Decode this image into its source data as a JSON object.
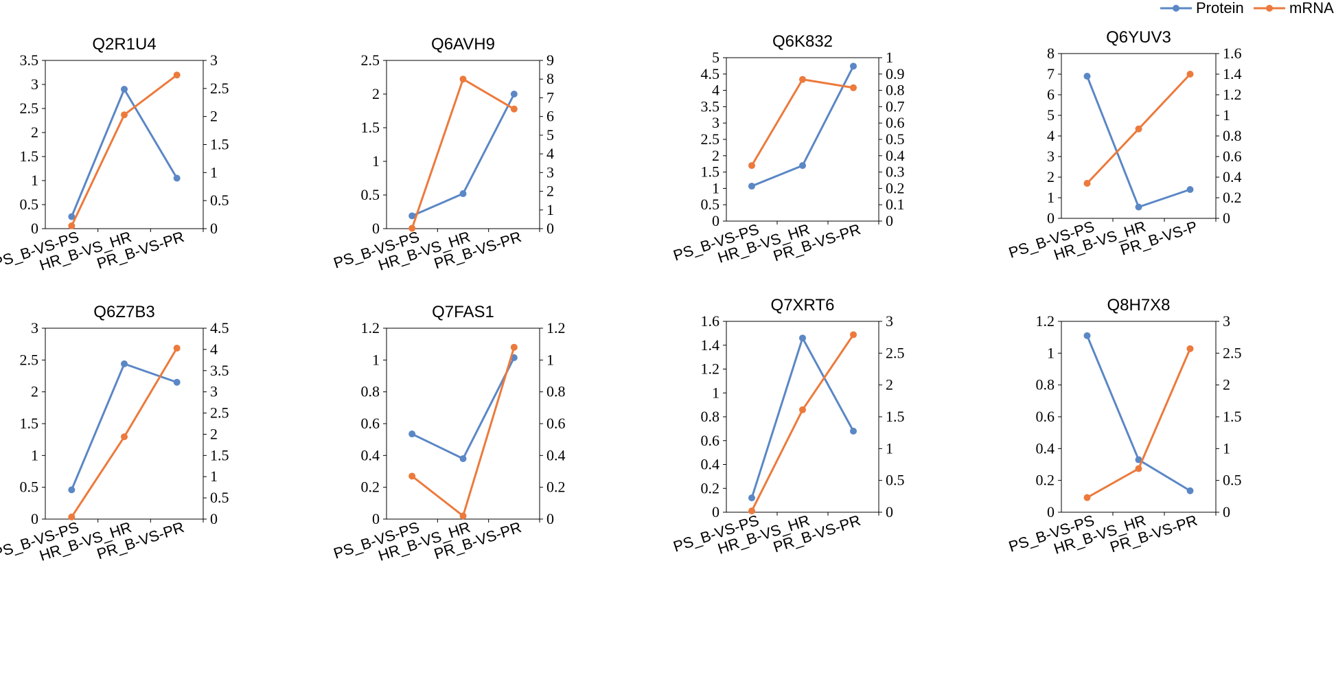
{
  "colors": {
    "protein": "#5b87c5",
    "mrna": "#ec7a3c"
  },
  "legend": [
    {
      "key": "protein",
      "label": "Protein"
    },
    {
      "key": "mrna",
      "label": "mRNA"
    }
  ],
  "chart_data": [
    {
      "type": "line",
      "title": "Q2R1U4",
      "categories": [
        "PS_B-VS-PS",
        "HR_B-VS_HR",
        "PR_B-VS-PR"
      ],
      "left_axis": {
        "series": "Protein",
        "ylim": [
          0,
          3.5
        ],
        "ticks": [
          "0",
          "0.5",
          "1",
          "1.5",
          "2",
          "2.5",
          "3",
          "3.5"
        ]
      },
      "right_axis": {
        "series": "mRNA",
        "ylim": [
          0,
          3
        ],
        "ticks": [
          "0",
          "0.5",
          "1",
          "1.5",
          "2",
          "2.5",
          "3"
        ]
      },
      "series": [
        {
          "name": "Protein",
          "axis": "left",
          "values": [
            0.25,
            2.9,
            1.05
          ]
        },
        {
          "name": "mRNA",
          "axis": "right",
          "values": [
            0.05,
            2.03,
            2.74
          ]
        }
      ]
    },
    {
      "type": "line",
      "title": "Q6AVH9",
      "categories": [
        "PS_B-VS-PS",
        "HR_B-VS_HR",
        "PR_B-VS-PR"
      ],
      "left_axis": {
        "series": "Protein",
        "ylim": [
          0,
          2.5
        ],
        "ticks": [
          "0",
          "0.5",
          "1",
          "1.5",
          "2",
          "2.5"
        ]
      },
      "right_axis": {
        "series": "mRNA",
        "ylim": [
          0,
          9
        ],
        "ticks": [
          "0",
          "1",
          "2",
          "3",
          "4",
          "5",
          "6",
          "7",
          "8",
          "9"
        ]
      },
      "series": [
        {
          "name": "Protein",
          "axis": "left",
          "values": [
            0.19,
            0.52,
            2.0
          ]
        },
        {
          "name": "mRNA",
          "axis": "right",
          "values": [
            0.02,
            8.0,
            6.4
          ]
        }
      ]
    },
    {
      "type": "line",
      "title": "Q6K832",
      "categories": [
        "PS_B-VS-PS",
        "HR_B-VS_HR",
        "PR_B-VS-PR"
      ],
      "left_axis": {
        "series": "Protein",
        "ylim": [
          0,
          5
        ],
        "ticks": [
          "0",
          "0.5",
          "1",
          "1.5",
          "2",
          "2.5",
          "3",
          "3.5",
          "4",
          "4.5",
          "5"
        ]
      },
      "right_axis": {
        "series": "mRNA",
        "ylim": [
          0,
          1
        ],
        "ticks": [
          "0",
          "0.1",
          "0.2",
          "0.3",
          "0.4",
          "0.5",
          "0.6",
          "0.7",
          "0.8",
          "0.9",
          "1"
        ]
      },
      "series": [
        {
          "name": "Protein",
          "axis": "left",
          "values": [
            1.07,
            1.7,
            4.74
          ]
        },
        {
          "name": "mRNA",
          "axis": "right",
          "values": [
            0.34,
            0.867,
            0.816
          ]
        }
      ]
    },
    {
      "type": "line",
      "title": "Q6YUV3",
      "categories": [
        "PS_B-VS-PS",
        "HR_B-VS_HR",
        "PR_B-VS-P"
      ],
      "left_axis": {
        "series": "Protein",
        "ylim": [
          0,
          8
        ],
        "ticks": [
          "0",
          "1",
          "2",
          "3",
          "4",
          "5",
          "6",
          "7",
          "8"
        ]
      },
      "right_axis": {
        "series": "mRNA",
        "ylim": [
          0,
          1.6
        ],
        "ticks": [
          "0",
          "0.2",
          "0.4",
          "0.6",
          "0.8",
          "1",
          "1.2",
          "1.4",
          "1.6"
        ]
      },
      "series": [
        {
          "name": "Protein",
          "axis": "left",
          "values": [
            6.9,
            0.55,
            1.4
          ]
        },
        {
          "name": "mRNA",
          "axis": "right",
          "values": [
            0.34,
            0.868,
            1.4
          ]
        }
      ]
    },
    {
      "type": "line",
      "title": "Q6Z7B3",
      "categories": [
        "PS_B-VS-PS",
        "HR_B-VS_HR",
        "PR_B-VS-PR"
      ],
      "left_axis": {
        "series": "Protein",
        "ylim": [
          0,
          3
        ],
        "ticks": [
          "0",
          "0.5",
          "1",
          "1.5",
          "2",
          "2.5",
          "3"
        ]
      },
      "right_axis": {
        "series": "mRNA",
        "ylim": [
          0,
          4.5
        ],
        "ticks": [
          "0",
          "0.5",
          "1",
          "1.5",
          "2",
          "2.5",
          "3",
          "3.5",
          "4",
          "4.5"
        ]
      },
      "series": [
        {
          "name": "Protein",
          "axis": "left",
          "values": [
            0.46,
            2.44,
            2.15
          ]
        },
        {
          "name": "mRNA",
          "axis": "right",
          "values": [
            0.05,
            1.94,
            4.03
          ]
        }
      ]
    },
    {
      "type": "line",
      "title": "Q7FAS1",
      "categories": [
        "PS_B-VS-PS",
        "HR_B-VS_HR",
        "PR_B-VS-PR"
      ],
      "left_axis": {
        "series": "Protein",
        "ylim": [
          0,
          1.2
        ],
        "ticks": [
          "0",
          "0.2",
          "0.4",
          "0.6",
          "0.8",
          "1",
          "1.2"
        ]
      },
      "right_axis": {
        "series": "mRNA",
        "ylim": [
          0,
          1.2
        ],
        "ticks": [
          "0",
          "0.2",
          "0.4",
          "0.6",
          "0.8",
          "1",
          "1.2"
        ]
      },
      "series": [
        {
          "name": "Protein",
          "axis": "left",
          "values": [
            0.535,
            0.38,
            1.015
          ]
        },
        {
          "name": "mRNA",
          "axis": "right",
          "values": [
            0.27,
            0.02,
            1.08
          ]
        }
      ]
    },
    {
      "type": "line",
      "title": "Q7XRT6",
      "categories": [
        "PS_B-VS-PS",
        "HR_B-VS_HR",
        "PR_B-VS-PR"
      ],
      "left_axis": {
        "series": "Protein",
        "ylim": [
          0,
          1.6
        ],
        "ticks": [
          "0",
          "0.2",
          "0.4",
          "0.6",
          "0.8",
          "1",
          "1.2",
          "1.4",
          "1.6"
        ]
      },
      "right_axis": {
        "series": "mRNA",
        "ylim": [
          0,
          3
        ],
        "ticks": [
          "0",
          "0.5",
          "1",
          "1.5",
          "2",
          "2.5",
          "3"
        ]
      },
      "series": [
        {
          "name": "Protein",
          "axis": "left",
          "values": [
            0.12,
            1.46,
            0.68
          ]
        },
        {
          "name": "mRNA",
          "axis": "right",
          "values": [
            0.02,
            1.61,
            2.79
          ]
        }
      ]
    },
    {
      "type": "line",
      "title": "Q8H7X8",
      "categories": [
        "PS_B-VS-PS",
        "HR_B-VS_HR",
        "PR_B-VS-PR"
      ],
      "left_axis": {
        "series": "Protein",
        "ylim": [
          0,
          1.2
        ],
        "ticks": [
          "0",
          "0.2",
          "0.4",
          "0.6",
          "0.8",
          "1",
          "1.2"
        ]
      },
      "right_axis": {
        "series": "mRNA",
        "ylim": [
          0,
          3
        ],
        "ticks": [
          "0",
          "0.5",
          "1",
          "1.5",
          "2",
          "2.5",
          "3"
        ]
      },
      "series": [
        {
          "name": "Protein",
          "axis": "left",
          "values": [
            1.11,
            0.33,
            0.135
          ]
        },
        {
          "name": "mRNA",
          "axis": "right",
          "values": [
            0.23,
            0.685,
            2.57
          ]
        }
      ]
    }
  ]
}
